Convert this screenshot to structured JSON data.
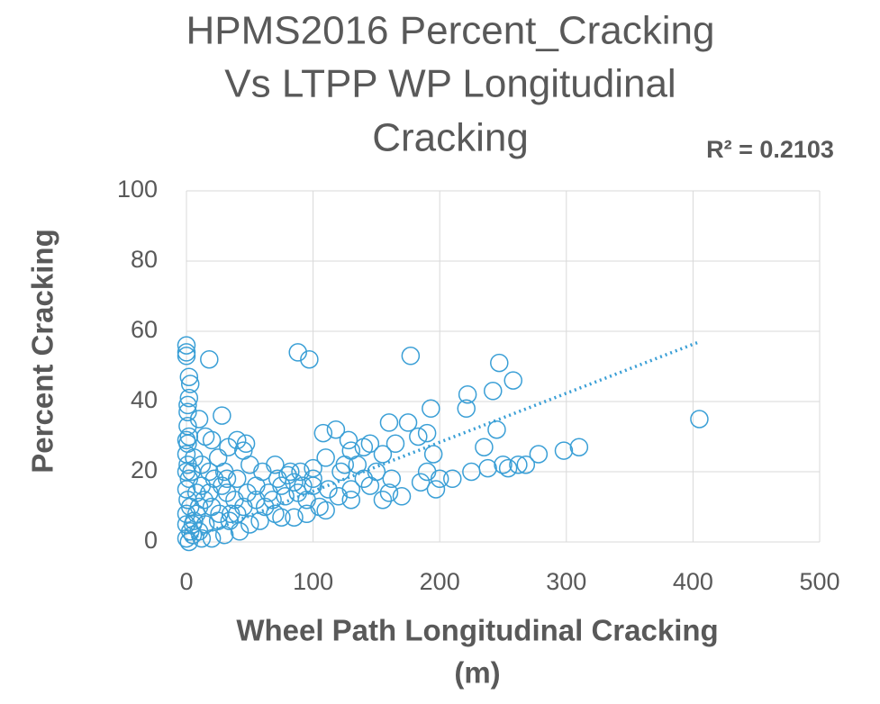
{
  "chart_data": {
    "type": "scatter",
    "title": [
      "HPMS2016 Percent_Cracking",
      "Vs LTPP WP Longitudinal",
      "Cracking"
    ],
    "x_label": [
      "Wheel Path Longitudinal Cracking",
      "(m)"
    ],
    "y_label": "Percent Cracking",
    "annotation": "R² = 0.2103",
    "xlim": [
      0,
      500
    ],
    "xticks": [
      0,
      100,
      200,
      300,
      400,
      500
    ],
    "ylim": [
      0,
      100
    ],
    "yticks": [
      0,
      20,
      40,
      60,
      80,
      100
    ],
    "grid": true,
    "trendline": {
      "x": [
        0,
        405
      ],
      "y": [
        0.5,
        57
      ],
      "color": "#3a9fd6"
    },
    "series": [
      {
        "color": "#3a9fd6",
        "x": [
          0,
          0,
          0,
          18,
          88,
          97,
          177,
          247,
          258,
          242,
          222,
          221,
          193,
          405,
          28,
          10,
          2,
          3,
          2,
          1,
          1,
          1,
          2,
          0,
          40,
          47,
          33,
          15,
          20,
          108,
          118,
          128,
          145,
          160,
          175,
          190,
          183,
          195,
          155,
          165,
          130,
          140,
          110,
          125,
          150,
          162,
          145,
          130,
          130,
          120,
          105,
          110,
          95,
          85,
          75,
          70,
          160,
          170,
          155,
          185,
          190,
          197,
          200,
          210,
          225,
          238,
          245,
          235,
          250,
          254,
          262,
          268,
          278,
          298,
          310,
          50,
          60,
          70,
          80,
          90,
          100,
          85,
          75,
          65,
          55,
          45,
          35,
          25,
          15,
          10,
          5,
          0,
          2,
          5,
          8,
          3,
          1,
          0,
          2,
          4,
          1,
          6,
          12,
          18,
          22,
          28,
          32,
          38,
          42,
          30,
          20,
          12,
          50,
          58,
          62,
          68,
          78,
          88,
          95,
          100,
          112,
          8,
          14,
          20,
          26,
          34,
          40,
          48,
          55,
          40,
          30,
          25,
          45,
          32,
          12,
          18,
          6,
          3,
          10,
          0,
          0,
          0,
          0,
          1,
          100,
          92,
          82,
          72,
          122,
          135,
          140
        ],
        "y": [
          56,
          54,
          53,
          52,
          54,
          52,
          53,
          51,
          46,
          43,
          42,
          38,
          38,
          35,
          36,
          35,
          47,
          45,
          41,
          39,
          37,
          33,
          30,
          29,
          29,
          28,
          27,
          30,
          29,
          31,
          32,
          29,
          28,
          34,
          34,
          31,
          30,
          25,
          25,
          28,
          26,
          27,
          24,
          22,
          20,
          18,
          16,
          15,
          12,
          13,
          10,
          9,
          8,
          7,
          7,
          8,
          14,
          13,
          12,
          17,
          20,
          15,
          18,
          18,
          20,
          21,
          32,
          27,
          22,
          21,
          22,
          22,
          25,
          26,
          27,
          22,
          20,
          22,
          19,
          20,
          21,
          17,
          16,
          14,
          12,
          10,
          8,
          6,
          5,
          3,
          2,
          1,
          0,
          5,
          8,
          10,
          12,
          15,
          18,
          20,
          22,
          24,
          22,
          20,
          18,
          16,
          14,
          12,
          3,
          2,
          1,
          1,
          5,
          6,
          10,
          12,
          13,
          14,
          12,
          16,
          15,
          14,
          12,
          10,
          8,
          6,
          8,
          14,
          16,
          18,
          20,
          24,
          26,
          18,
          16,
          14,
          6,
          3,
          10,
          8,
          5,
          25,
          20,
          28,
          18,
          16,
          20,
          18,
          20,
          22,
          18
        ]
      }
    ]
  }
}
